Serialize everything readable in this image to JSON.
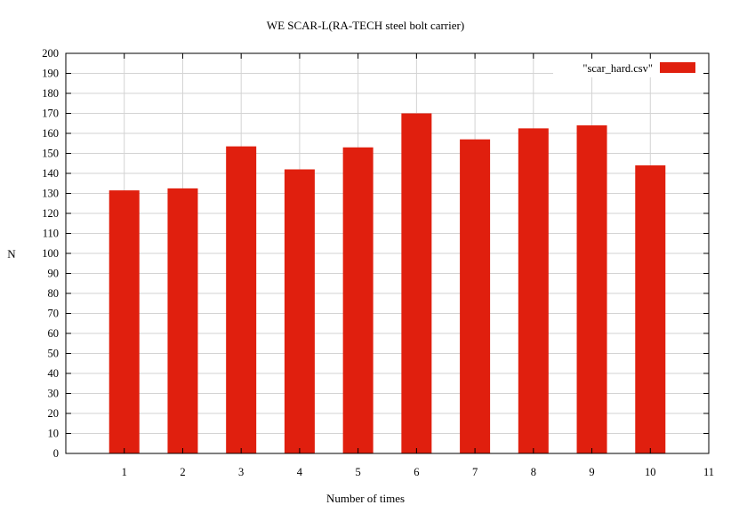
{
  "chart_data": {
    "type": "bar",
    "title": "WE SCAR-L(RA-TECH steel bolt carrier)",
    "xlabel": "Number of times",
    "ylabel": "N",
    "categories": [
      1,
      2,
      3,
      4,
      5,
      6,
      7,
      8,
      9,
      10
    ],
    "series": [
      {
        "name": "\"scar_hard.csv\"",
        "color": "#e01f0e",
        "values": [
          131.5,
          132.5,
          153.5,
          142,
          153,
          170,
          157,
          162.5,
          164,
          144
        ]
      }
    ],
    "xlim": [
      0,
      11
    ],
    "ylim": [
      0,
      200
    ],
    "xticks": [
      1,
      2,
      3,
      4,
      5,
      6,
      7,
      8,
      9,
      10,
      11
    ],
    "yticks": [
      0,
      10,
      20,
      30,
      40,
      50,
      60,
      70,
      80,
      90,
      100,
      110,
      120,
      130,
      140,
      150,
      160,
      170,
      180,
      190,
      200
    ],
    "grid": true,
    "legend_position": "top-right"
  }
}
